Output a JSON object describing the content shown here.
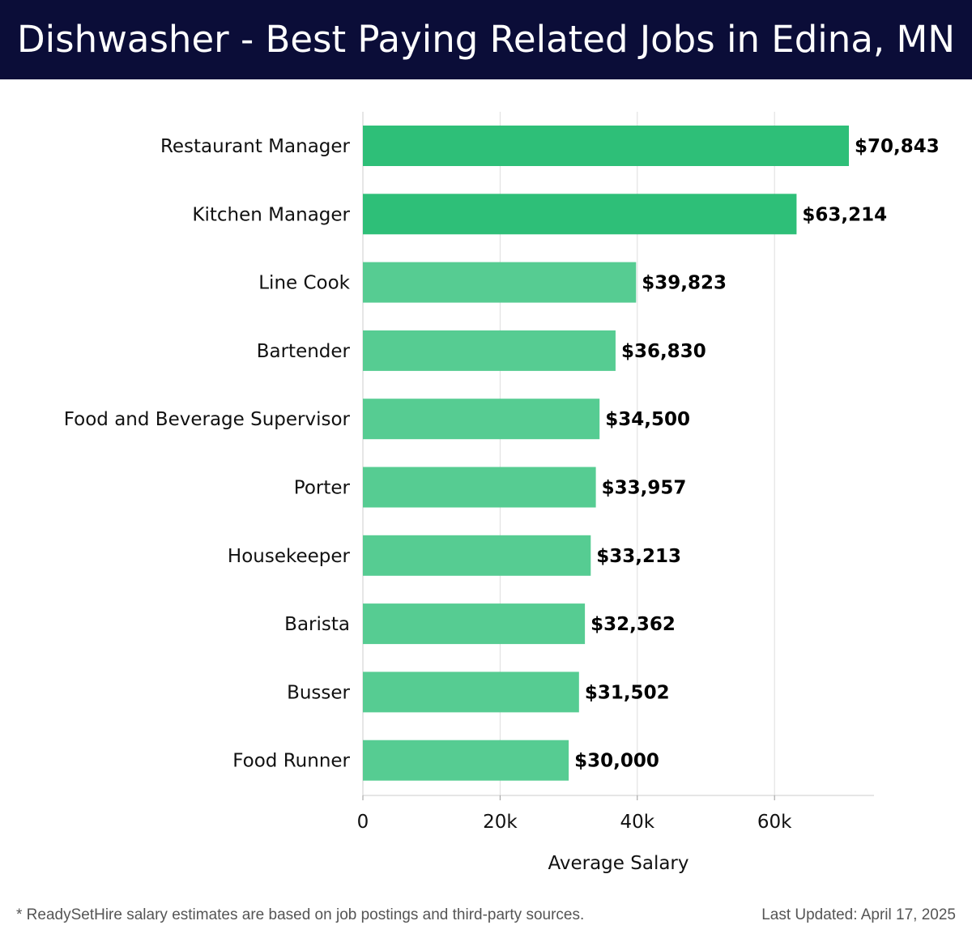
{
  "header": {
    "title": "Dishwasher - Best Paying Related Jobs in Edina, MN"
  },
  "chart_data": {
    "type": "bar",
    "orientation": "horizontal",
    "title": "Dishwasher - Best Paying Related Jobs in Edina, MN",
    "categories": [
      "Restaurant Manager",
      "Kitchen Manager",
      "Line Cook",
      "Bartender",
      "Food and Beverage Supervisor",
      "Porter",
      "Housekeeper",
      "Barista",
      "Busser",
      "Food Runner"
    ],
    "values": [
      70843,
      63214,
      39823,
      36830,
      34500,
      33957,
      33213,
      32362,
      31502,
      30000
    ],
    "value_labels": [
      "$70,843",
      "$63,214",
      "$39,823",
      "$36,830",
      "$34,500",
      "$33,957",
      "$33,213",
      "$32,362",
      "$31,502",
      "$30,000"
    ],
    "xlabel": "Average Salary",
    "ylabel": "",
    "xlim": [
      0,
      74500
    ],
    "xticks": [
      0,
      20000,
      40000,
      60000
    ],
    "xtick_labels": [
      "0",
      "20k",
      "40k",
      "60k"
    ],
    "grid": true,
    "colors": {
      "top_bar": "#2ebf78",
      "bar": "#56cc92",
      "grid": "#dddddd",
      "axis": "#cccccc"
    }
  },
  "footer": {
    "note": "* ReadySetHire salary estimates are based on job postings and third-party sources.",
    "updated": "Last Updated: April 17, 2025"
  }
}
